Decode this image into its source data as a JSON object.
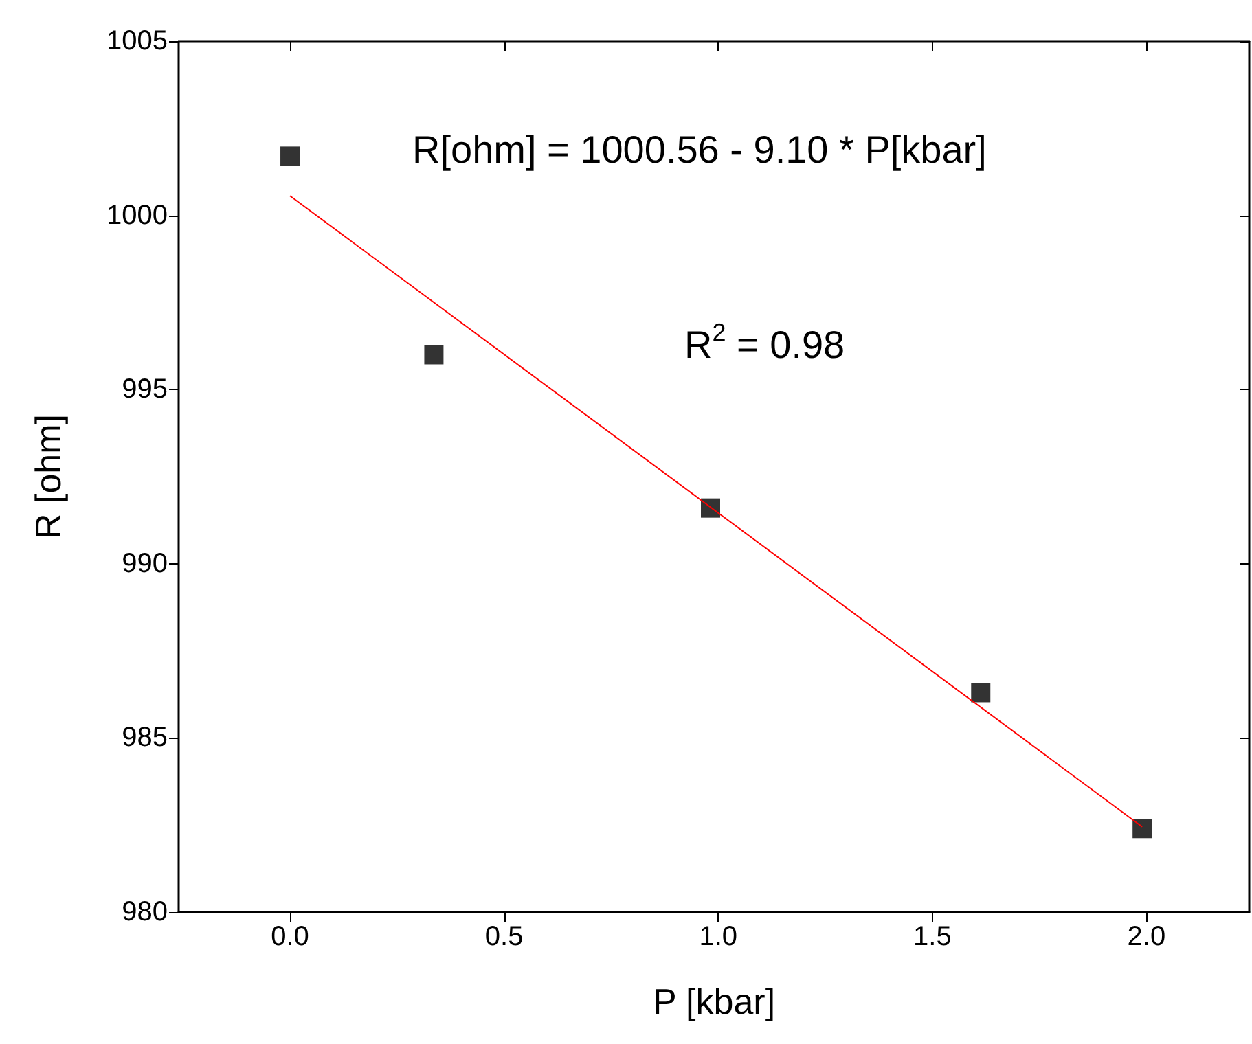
{
  "chart_data": {
    "type": "scatter",
    "xlabel": "P [kbar]",
    "ylabel": "R [ohm]",
    "x": [
      0,
      0.336,
      0.982,
      1.613,
      1.99
    ],
    "series": [
      {
        "color": "#000000",
        "marker": "square",
        "values": [
          1001.7,
          996.0,
          991.6,
          986.3,
          982.4
        ]
      },
      {
        "type": "line",
        "color": "#ff0000",
        "marker": "none",
        "line_style": "solid",
        "x": [
          0,
          1.99
        ],
        "values": [
          1000.56,
          982.45
        ]
      }
    ],
    "xlim": [
      -0.26,
      2.24
    ],
    "xticks": [
      {
        "value": 0,
        "label": "0.0"
      },
      {
        "value": 0.5,
        "label": "0.5"
      },
      {
        "value": 1,
        "label": "1.0"
      },
      {
        "value": 1.5,
        "label": "1.5"
      },
      {
        "value": 2,
        "label": "2.0"
      }
    ],
    "ylim": [
      980,
      1005
    ],
    "yticks": [
      980,
      985,
      990,
      995,
      1000,
      1005
    ],
    "annotations": [
      "R[ohm] = 1000.56 - 9.10 * P[kbar]",
      "R$^{2}$ = 0.98"
    ],
    "grid": false
  }
}
